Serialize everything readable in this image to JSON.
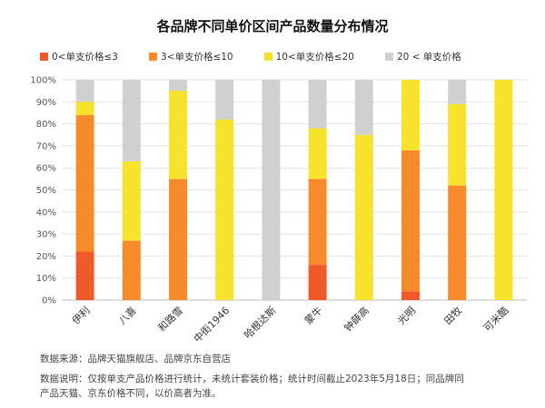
{
  "chart_data": {
    "type": "bar",
    "stacked": true,
    "title": "各品牌不同单价区间产品数量分布情况",
    "categories": [
      "伊利",
      "八喜",
      "和路雪",
      "中街1946",
      "哈根达斯",
      "蒙牛",
      "钟薛高",
      "光明",
      "田牧",
      "可米酷"
    ],
    "series": [
      {
        "name": "0<单支价格≤3",
        "color": "#f05a28",
        "values": [
          22,
          0,
          0,
          0,
          0,
          16,
          0,
          4,
          0,
          0
        ]
      },
      {
        "name": "3<单支价格≤10",
        "color": "#f78b2c",
        "values": [
          62,
          27,
          55,
          0,
          0,
          39,
          0,
          64,
          52,
          0
        ]
      },
      {
        "name": "10<单支价格≤20",
        "color": "#f7e22c",
        "values": [
          6,
          36,
          40,
          82,
          0,
          23,
          75,
          32,
          37,
          100
        ]
      },
      {
        "name": "20 < 单支价格",
        "color": "#d0d0d0",
        "values": [
          10,
          37,
          5,
          18,
          100,
          22,
          25,
          0,
          11,
          0
        ]
      }
    ],
    "yticks": [
      "0%",
      "10%",
      "20%",
      "30%",
      "40%",
      "50%",
      "60%",
      "70%",
      "80%",
      "90%",
      "100%"
    ],
    "ylim": [
      0,
      100
    ],
    "xlabel": "",
    "ylabel": "",
    "grid": true,
    "legend": "top-left"
  },
  "footnotes": {
    "source": "数据来源：品牌天猫旗舰店、品牌京东自营店",
    "method": "数据说明：仅按单支产品价格进行统计，未统计套装价格；统计时间截止2023年5月18日；同品牌同产品天猫、京东价格不同，以价高者为准。"
  }
}
